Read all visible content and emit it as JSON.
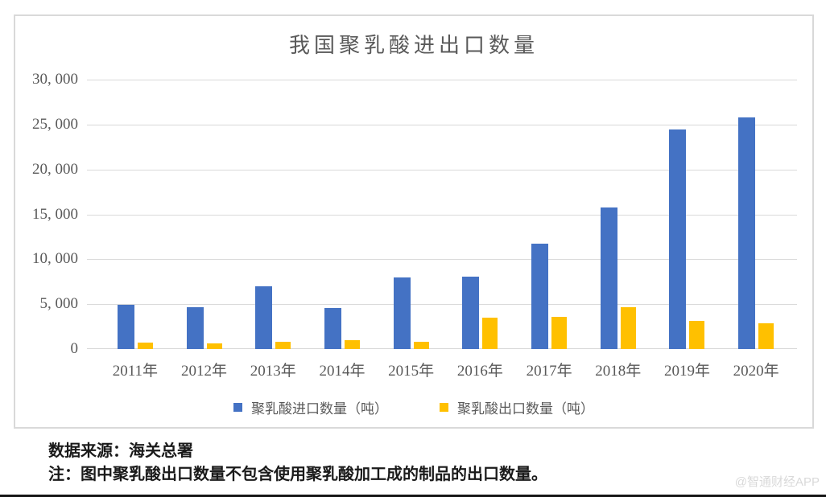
{
  "title": "我国聚乳酸进出口数量",
  "chart_data": {
    "type": "bar",
    "title": "我国聚乳酸进出口数量",
    "categories": [
      "2011年",
      "2012年",
      "2013年",
      "2014年",
      "2015年",
      "2016年",
      "2017年",
      "2018年",
      "2019年",
      "2020年"
    ],
    "series": [
      {
        "id": "import",
        "name": "聚乳酸进口数量（吨）",
        "color": "#4472C4",
        "values": [
          4900,
          4650,
          7000,
          4550,
          8000,
          8100,
          11700,
          15800,
          24450,
          25750
        ]
      },
      {
        "id": "export",
        "name": "聚乳酸出口数量（吨）",
        "color": "#FFC000",
        "values": [
          700,
          600,
          800,
          1000,
          800,
          3450,
          3600,
          4650,
          3150,
          2900
        ]
      }
    ],
    "ylim": [
      0,
      30000
    ],
    "ytick_step": 5000,
    "ytick_labels": [
      "0",
      "5, 000",
      "10, 000",
      "15, 000",
      "20, 000",
      "25, 000",
      "30, 000"
    ],
    "grid": true,
    "legend_position": "bottom"
  },
  "legend": {
    "items": [
      {
        "label": "聚乳酸进口数量（吨）",
        "color": "#4472C4"
      },
      {
        "label": "聚乳酸出口数量（吨）",
        "color": "#FFC000"
      }
    ]
  },
  "footnotes": {
    "source": "数据来源：海关总署",
    "note": "注：图中聚乳酸出口数量不包含使用聚乳酸加工成的制品的出口数量。"
  },
  "watermark": "@智通财经APP",
  "colors": {
    "import_bar": "#4472C4",
    "export_bar": "#FFC000",
    "gridline": "#d9d9d9",
    "axis_text": "#595959",
    "frame_border": "#d9d9d9",
    "footnote_text": "#1a1a1a",
    "watermark_text": "#d9d9d9"
  }
}
